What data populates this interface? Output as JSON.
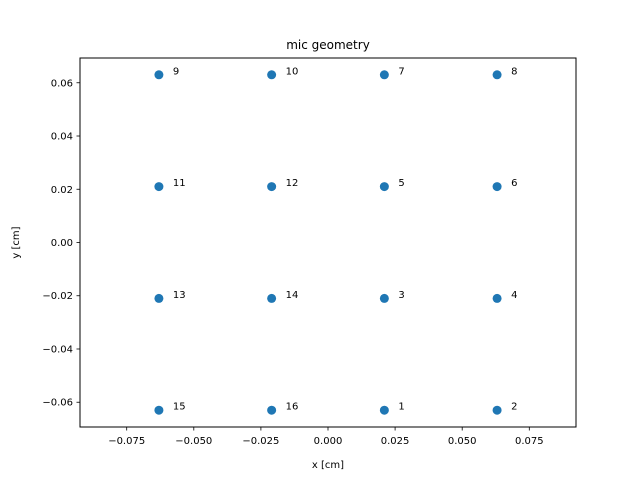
{
  "chart_data": {
    "type": "scatter",
    "title": "mic geometry",
    "xlabel": "x [cm]",
    "ylabel": "y [cm]",
    "xlim": [
      -0.0924,
      0.0924
    ],
    "ylim": [
      -0.0693,
      0.0693
    ],
    "xticks": [
      -0.075,
      -0.05,
      -0.025,
      0.0,
      0.025,
      0.05,
      0.075
    ],
    "xtick_labels": [
      "−0.075",
      "−0.050",
      "−0.025",
      "0.000",
      "0.025",
      "0.050",
      "0.075"
    ],
    "yticks": [
      -0.06,
      -0.04,
      -0.02,
      0.0,
      0.02,
      0.04,
      0.06
    ],
    "ytick_labels": [
      "−0.06",
      "−0.04",
      "−0.02",
      "0.00",
      "0.02",
      "0.04",
      "0.06"
    ],
    "grid": false,
    "marker_color": "#1f77b4",
    "points": [
      {
        "label": "1",
        "x": 0.021,
        "y": -0.063
      },
      {
        "label": "2",
        "x": 0.063,
        "y": -0.063
      },
      {
        "label": "3",
        "x": 0.021,
        "y": -0.021
      },
      {
        "label": "4",
        "x": 0.063,
        "y": -0.021
      },
      {
        "label": "5",
        "x": 0.021,
        "y": 0.021
      },
      {
        "label": "6",
        "x": 0.063,
        "y": 0.021
      },
      {
        "label": "7",
        "x": 0.021,
        "y": 0.063
      },
      {
        "label": "8",
        "x": 0.063,
        "y": 0.063
      },
      {
        "label": "9",
        "x": -0.063,
        "y": 0.063
      },
      {
        "label": "10",
        "x": -0.021,
        "y": 0.063
      },
      {
        "label": "11",
        "x": -0.063,
        "y": 0.021
      },
      {
        "label": "12",
        "x": -0.021,
        "y": 0.021
      },
      {
        "label": "13",
        "x": -0.063,
        "y": -0.021
      },
      {
        "label": "14",
        "x": -0.021,
        "y": -0.021
      },
      {
        "label": "15",
        "x": -0.063,
        "y": -0.063
      },
      {
        "label": "16",
        "x": -0.021,
        "y": -0.063
      }
    ]
  }
}
